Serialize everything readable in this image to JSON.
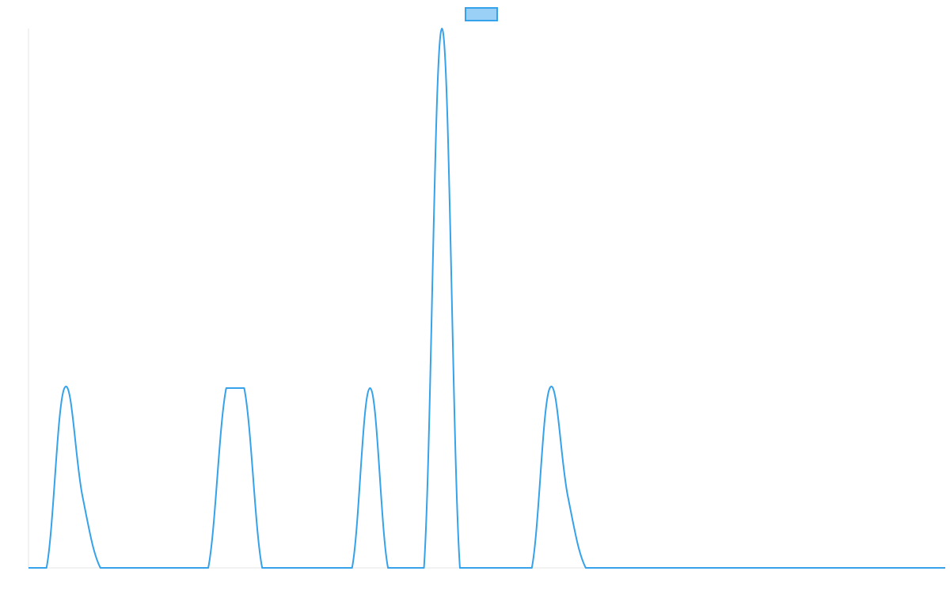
{
  "chart_data": {
    "type": "line",
    "title": "",
    "xlabel": "",
    "ylabel": "",
    "xlim": [
      0,
      51
    ],
    "ylim": [
      0,
      3
    ],
    "legend": {
      "placement": "top-center",
      "entries": [
        {
          "label": ""
        }
      ]
    },
    "grid": false,
    "series": [
      {
        "name": "",
        "color": "#36a2eb",
        "fill": "#9ad0f5",
        "points": [
          [
            0,
            0
          ],
          [
            1,
            0
          ],
          [
            2,
            1
          ],
          [
            3,
            0.4
          ],
          [
            4,
            0
          ],
          [
            5,
            0
          ],
          [
            6,
            0
          ],
          [
            7,
            0
          ],
          [
            8,
            0
          ],
          [
            9,
            0
          ],
          [
            10,
            0
          ],
          [
            11,
            1
          ],
          [
            12,
            1
          ],
          [
            13,
            0
          ],
          [
            14,
            0
          ],
          [
            15,
            0
          ],
          [
            16,
            0
          ],
          [
            17,
            0
          ],
          [
            18,
            0
          ],
          [
            19,
            1
          ],
          [
            20,
            0
          ],
          [
            21,
            0
          ],
          [
            22,
            0
          ],
          [
            23,
            3
          ],
          [
            24,
            0
          ],
          [
            25,
            0
          ],
          [
            26,
            0
          ],
          [
            27,
            0
          ],
          [
            28,
            0
          ],
          [
            29,
            1
          ],
          [
            30,
            0.4
          ],
          [
            31,
            0
          ],
          [
            32,
            0
          ],
          [
            33,
            0
          ],
          [
            34,
            0
          ],
          [
            35,
            0
          ],
          [
            36,
            0
          ],
          [
            37,
            0
          ],
          [
            38,
            0
          ],
          [
            39,
            0
          ],
          [
            40,
            0
          ],
          [
            41,
            0
          ],
          [
            42,
            0
          ],
          [
            43,
            0
          ],
          [
            44,
            0
          ],
          [
            45,
            0
          ],
          [
            46,
            0
          ],
          [
            47,
            0
          ],
          [
            48,
            0
          ],
          [
            49,
            0
          ],
          [
            50,
            0
          ],
          [
            51,
            0
          ]
        ]
      }
    ]
  }
}
